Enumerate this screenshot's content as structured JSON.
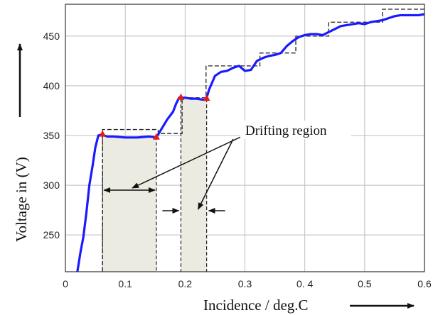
{
  "chart_data": {
    "type": "line",
    "xlabel": "Incidence / deg.C",
    "ylabel": "Voltage in (V)",
    "xlim": [
      0,
      0.6
    ],
    "ylim": [
      213,
      482
    ],
    "x_ticks": [
      "0",
      "0.1",
      "0.2",
      "0.3",
      "0. 4",
      "0.5",
      "0.6"
    ],
    "x_tick_values": [
      0,
      0.1,
      0.2,
      0.3,
      0.4,
      0.5,
      0.6
    ],
    "y_ticks": [
      "250",
      "300",
      "350",
      "400",
      "450"
    ],
    "y_tick_values": [
      250,
      300,
      350,
      400,
      450
    ],
    "grid": true,
    "line_color": "#1a1aff",
    "marker_color": "#e81a1a",
    "region_fill": "#ecebe2",
    "series": [
      {
        "style": "solid",
        "x": [
          0.02,
          0.025,
          0.03,
          0.035,
          0.04,
          0.045,
          0.05,
          0.055,
          0.06,
          0.07,
          0.08,
          0.1,
          0.12,
          0.14,
          0.152,
          0.16,
          0.17,
          0.18,
          0.185,
          0.19,
          0.2,
          0.21,
          0.22,
          0.23,
          0.235,
          0.24,
          0.25,
          0.26,
          0.27,
          0.28,
          0.29,
          0.3,
          0.31,
          0.32,
          0.33,
          0.34,
          0.35,
          0.36,
          0.37,
          0.38,
          0.39,
          0.4,
          0.41,
          0.42,
          0.43,
          0.44,
          0.45,
          0.46,
          0.47,
          0.48,
          0.49,
          0.5,
          0.51,
          0.52,
          0.53,
          0.54,
          0.55,
          0.56,
          0.57,
          0.58,
          0.59,
          0.6
        ],
        "y": [
          213,
          232,
          248,
          272,
          300,
          318,
          338,
          350,
          351,
          349,
          349,
          348,
          348,
          349,
          348,
          356,
          366,
          374,
          382,
          388,
          388,
          387,
          387,
          386,
          386,
          396,
          410,
          414,
          415,
          418,
          420,
          415,
          416,
          425,
          428,
          430,
          431,
          433,
          440,
          445,
          449,
          451,
          452,
          452,
          451,
          454,
          457,
          460,
          461,
          462,
          463,
          462,
          464,
          465,
          466,
          468,
          470,
          471,
          471,
          471,
          471,
          472
        ]
      }
    ],
    "ideal_staircase": {
      "style": "dashed",
      "x": [
        0.062,
        0.062,
        0.155,
        0.155,
        0.195,
        0.195,
        0.235,
        0.235,
        0.275,
        0.275,
        0.325,
        0.325,
        0.385,
        0.385,
        0.44,
        0.44,
        0.53,
        0.53,
        0.6
      ],
      "y": [
        213,
        356,
        356,
        352,
        352,
        388,
        388,
        420,
        420,
        420,
        420,
        433,
        433,
        450,
        450,
        464,
        464,
        477,
        477
      ]
    },
    "drift_regions": [
      {
        "x": [
          0.062,
          0.152
        ],
        "y_top": 349
      },
      {
        "x": [
          0.193,
          0.236
        ],
        "y_top": 387
      }
    ],
    "red_markers": {
      "x": [
        0.062,
        0.152,
        0.193,
        0.236
      ],
      "y": [
        351,
        348,
        388,
        387
      ]
    },
    "annotations": [
      {
        "text": "Drifting region"
      }
    ]
  }
}
